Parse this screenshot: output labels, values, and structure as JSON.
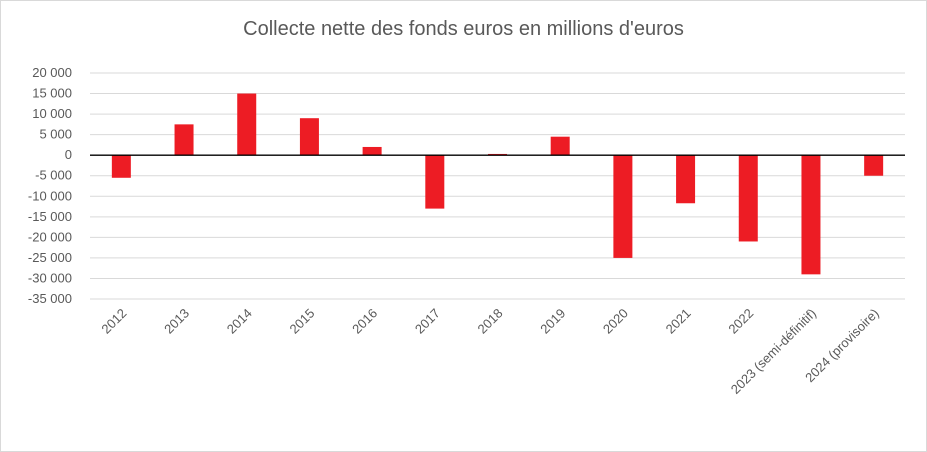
{
  "colors": {
    "bar": "#ed1c24",
    "grid": "#d9d9d9",
    "zero_line": "#000000",
    "text": "#595959"
  },
  "chart_data": {
    "type": "bar",
    "title": "Collecte nette des fonds euros en millions d'euros",
    "xlabel": "",
    "ylabel": "",
    "categories": [
      "2012",
      "2013",
      "2014",
      "2015",
      "2016",
      "2017",
      "2018",
      "2019",
      "2020",
      "2021",
      "2022",
      "2023 (semi-définitif)",
      "2024 (provisoire)"
    ],
    "values": [
      -5500,
      7500,
      15000,
      9000,
      2000,
      -13000,
      300,
      4500,
      -25000,
      -11700,
      -21000,
      -29000,
      -5000
    ],
    "ylim": [
      -35000,
      20000
    ],
    "yticks": [
      20000,
      15000,
      10000,
      5000,
      0,
      -5000,
      -10000,
      -15000,
      -20000,
      -25000,
      -30000,
      -35000
    ],
    "ytick_labels": [
      "20 000",
      "15 000",
      "10 000",
      "5 000",
      "0",
      "-5 000",
      "-10 000",
      "-15 000",
      "-20 000",
      "-25 000",
      "-30 000",
      "-35 000"
    ],
    "grid": true,
    "legend": "none"
  }
}
